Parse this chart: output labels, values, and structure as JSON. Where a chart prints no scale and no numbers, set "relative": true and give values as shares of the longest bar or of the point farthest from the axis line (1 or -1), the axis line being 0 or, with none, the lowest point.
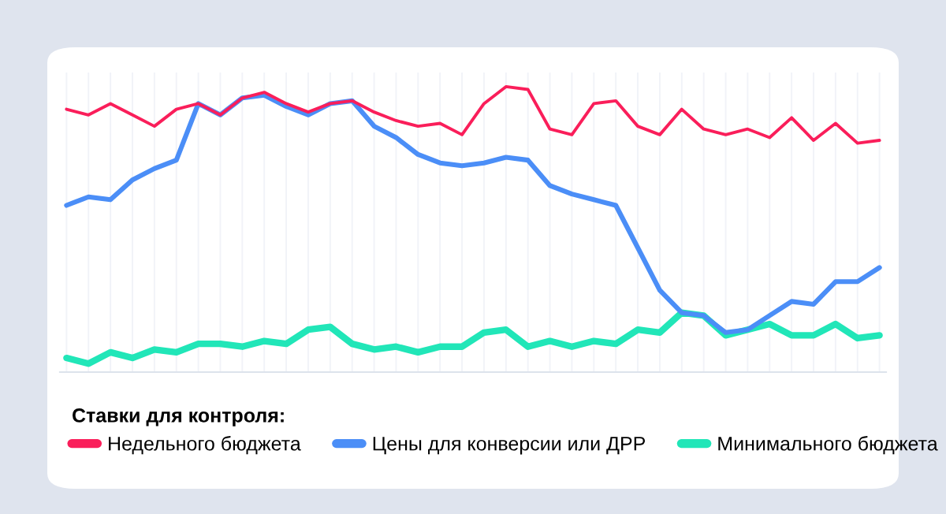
{
  "chart_data": {
    "type": "line",
    "relative": true,
    "grid": "x",
    "legend": "bottom",
    "legend_title": "Ставки для контроля:",
    "categories": [
      null,
      null,
      null,
      null,
      null,
      null,
      null,
      null,
      null,
      null,
      null,
      null,
      null,
      null,
      null,
      null,
      null,
      null,
      null,
      null,
      null,
      null,
      null,
      null,
      null,
      null,
      null,
      null,
      null,
      null,
      null,
      null,
      null,
      null,
      null,
      null,
      null,
      null
    ],
    "series": [
      {
        "name": "Недельного бюджета",
        "color": "#fa1e5a",
        "values": [
          0.92,
          0.9,
          0.94,
          0.9,
          0.86,
          0.92,
          0.94,
          0.9,
          0.96,
          0.98,
          0.94,
          0.91,
          0.94,
          0.95,
          0.91,
          0.88,
          0.86,
          0.87,
          0.83,
          0.94,
          1.0,
          0.99,
          0.85,
          0.83,
          0.94,
          0.95,
          0.86,
          0.83,
          0.92,
          0.85,
          0.83,
          0.85,
          0.82,
          0.89,
          0.81,
          0.87,
          0.8,
          0.81
        ]
      },
      {
        "name": "Цены для конверсии или ДРР",
        "color": "#4b8ef7",
        "values": [
          0.58,
          0.61,
          0.6,
          0.67,
          0.71,
          0.74,
          0.94,
          0.9,
          0.96,
          0.97,
          0.93,
          0.9,
          0.94,
          0.95,
          0.86,
          0.82,
          0.76,
          0.73,
          0.72,
          0.73,
          0.75,
          0.74,
          0.65,
          0.62,
          0.6,
          0.58,
          0.43,
          0.28,
          0.2,
          0.19,
          0.13,
          0.14,
          0.19,
          0.24,
          0.23,
          0.31,
          0.31,
          0.36
        ]
      },
      {
        "name": "Минимального бюджета",
        "color": "#21e6b8",
        "values": [
          0.04,
          0.02,
          0.06,
          0.04,
          0.07,
          0.06,
          0.09,
          0.09,
          0.08,
          0.1,
          0.09,
          0.14,
          0.15,
          0.09,
          0.07,
          0.08,
          0.06,
          0.08,
          0.08,
          0.13,
          0.14,
          0.08,
          0.1,
          0.08,
          0.1,
          0.09,
          0.14,
          0.13,
          0.2,
          0.19,
          0.12,
          0.14,
          0.16,
          0.12,
          0.12,
          0.16,
          0.11,
          0.12
        ]
      }
    ]
  }
}
